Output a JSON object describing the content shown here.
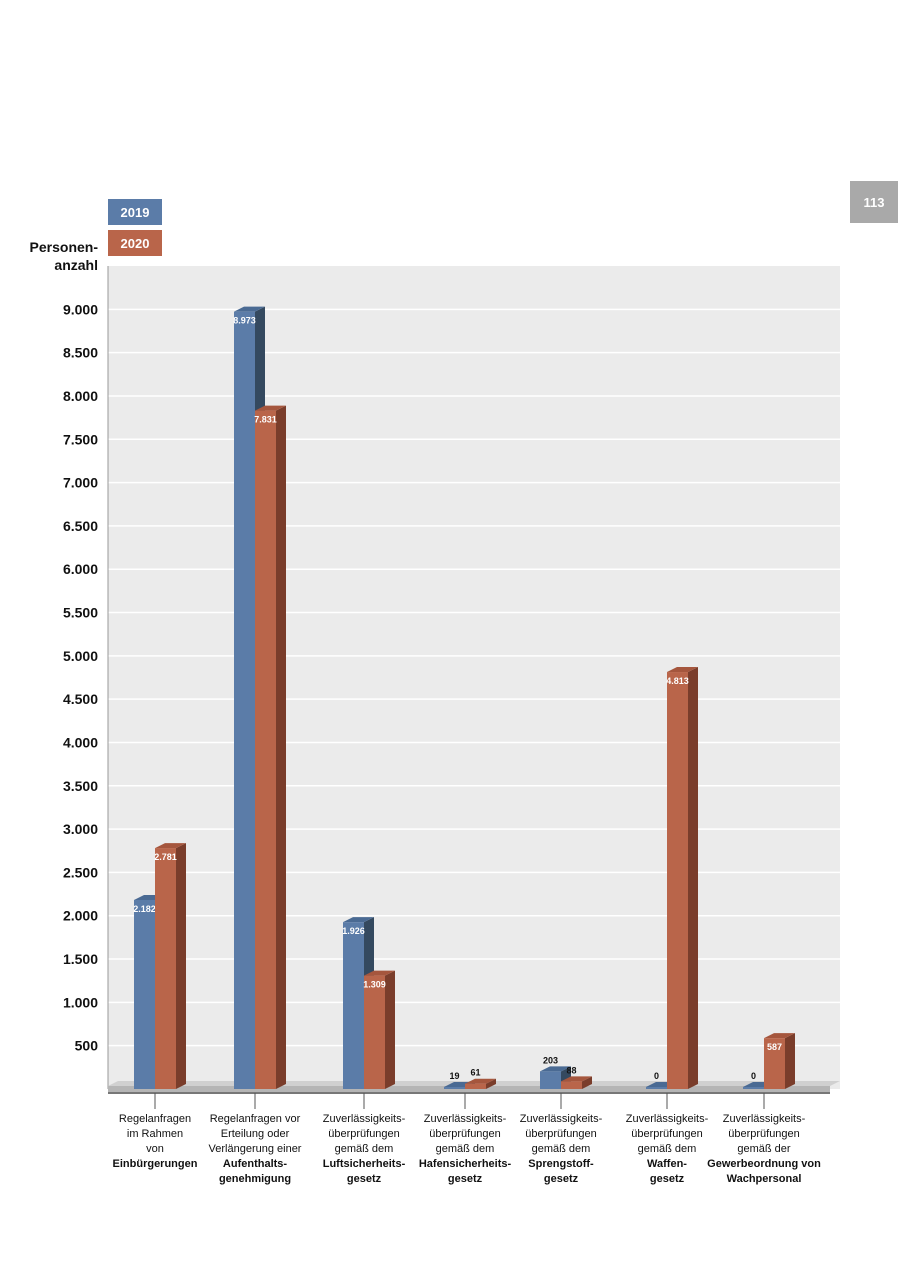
{
  "page_number": "113",
  "legend": [
    {
      "label": "2019",
      "color": "#5b7ca8"
    },
    {
      "label": "2020",
      "color": "#b9654a"
    }
  ],
  "y_axis_label": [
    "Personen-",
    "anzahl"
  ],
  "chart_data": {
    "type": "bar",
    "ylabel": "Personen- anzahl",
    "ylim": [
      0,
      9500
    ],
    "y_ticks": [
      {
        "value": 500,
        "label": "500"
      },
      {
        "value": 1000,
        "label": "1.000"
      },
      {
        "value": 1500,
        "label": "1.500"
      },
      {
        "value": 2000,
        "label": "2.000"
      },
      {
        "value": 2500,
        "label": "2.500"
      },
      {
        "value": 3000,
        "label": "3.000"
      },
      {
        "value": 3500,
        "label": "3.500"
      },
      {
        "value": 4000,
        "label": "4.000"
      },
      {
        "value": 4500,
        "label": "4.500"
      },
      {
        "value": 5000,
        "label": "5.000"
      },
      {
        "value": 5500,
        "label": "5.500"
      },
      {
        "value": 6000,
        "label": "6.000"
      },
      {
        "value": 6500,
        "label": "6.500"
      },
      {
        "value": 7000,
        "label": "7.000"
      },
      {
        "value": 7500,
        "label": "7.500"
      },
      {
        "value": 8000,
        "label": "8.000"
      },
      {
        "value": 8500,
        "label": "8.500"
      },
      {
        "value": 9000,
        "label": "9.000"
      }
    ],
    "grid": true,
    "legend_position": "top-left",
    "categories": [
      {
        "lines": [
          {
            "text": "Regelanfragen",
            "bold": false
          },
          {
            "text": "im Rahmen",
            "bold": false
          },
          {
            "text": "von",
            "bold": false
          },
          {
            "text": "Einbürgerungen",
            "bold": true
          }
        ]
      },
      {
        "lines": [
          {
            "text": "Regelanfragen vor",
            "bold": false
          },
          {
            "text": "Erteilung oder",
            "bold": false
          },
          {
            "text": "Verlängerung einer",
            "bold": false
          },
          {
            "text": "Aufenthalts-",
            "bold": true
          },
          {
            "text": "genehmigung",
            "bold": true
          }
        ]
      },
      {
        "lines": [
          {
            "text": "Zuverlässigkeits-",
            "bold": false
          },
          {
            "text": "überprüfungen",
            "bold": false
          },
          {
            "text": "gemäß dem",
            "bold": false
          },
          {
            "text": "Luftsicherheits-",
            "bold": true
          },
          {
            "text": "gesetz",
            "bold": true
          }
        ]
      },
      {
        "lines": [
          {
            "text": "Zuverlässigkeits-",
            "bold": false
          },
          {
            "text": "überprüfungen",
            "bold": false
          },
          {
            "text": "gemäß dem",
            "bold": false
          },
          {
            "text": "Hafensicherheits-",
            "bold": true
          },
          {
            "text": "gesetz",
            "bold": true
          }
        ]
      },
      {
        "lines": [
          {
            "text": "Zuverlässigkeits-",
            "bold": false
          },
          {
            "text": "überprüfungen",
            "bold": false
          },
          {
            "text": "gemäß dem",
            "bold": false
          },
          {
            "text": "Sprengstoff-",
            "bold": true
          },
          {
            "text": "gesetz",
            "bold": true
          }
        ]
      },
      {
        "lines": [
          {
            "text": "Zuverlässigkeits-",
            "bold": false
          },
          {
            "text": "überprüfungen",
            "bold": false
          },
          {
            "text": "gemäß dem",
            "bold": false
          },
          {
            "text": "Waffen-",
            "bold": true
          },
          {
            "text": "gesetz",
            "bold": true
          }
        ]
      },
      {
        "lines": [
          {
            "text": "Zuverlässigkeits-",
            "bold": false
          },
          {
            "text": "überprüfungen",
            "bold": false
          },
          {
            "text": "gemäß der",
            "bold": false
          },
          {
            "text": "Gewerbeordnung von",
            "bold": true
          },
          {
            "text": "Wachpersonal",
            "bold": true
          }
        ]
      }
    ],
    "series": [
      {
        "name": "2019",
        "values": [
          2182,
          8973,
          1926,
          19,
          203,
          0,
          0
        ],
        "labels": [
          "2.182",
          "8.973",
          "1.926",
          "19",
          "203",
          "0",
          "0"
        ]
      },
      {
        "name": "2020",
        "values": [
          2781,
          7831,
          1309,
          61,
          88,
          4813,
          587
        ],
        "labels": [
          "2.781",
          "7.831",
          "1.309",
          "61",
          "88",
          "4.813",
          "587"
        ]
      }
    ],
    "colors": {
      "series_2019": "#5b7ca8",
      "series_2019_side": "#34495f",
      "series_2019_top": "#4a6a93",
      "series_2020": "#b9654a",
      "series_2020_side": "#7a3d2b",
      "series_2020_top": "#a5563d",
      "plot_bg": "#ebebeb",
      "grid": "#ffffff",
      "floor": "#b5b5b5"
    }
  }
}
